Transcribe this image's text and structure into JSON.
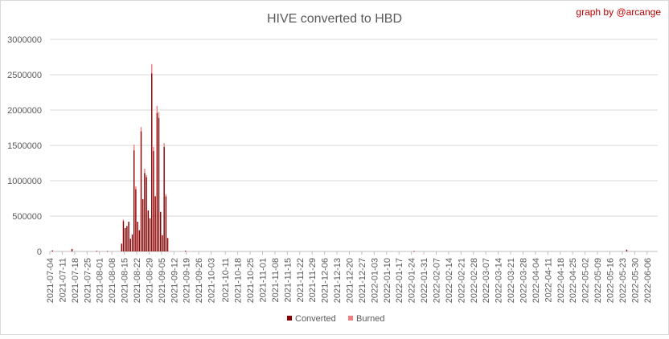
{
  "credit": "graph by @arcange",
  "colors": {
    "converted": "#8b0000",
    "burned": "#f08080",
    "grid": "#d9d9d9",
    "axis_text": "#595959",
    "title": "#595959",
    "credit": "#c00000",
    "border": "#d9d9d9"
  },
  "chart_data": {
    "type": "bar",
    "title": "HIVE converted to HBD",
    "xlabel": "",
    "ylabel": "",
    "ylim": [
      0,
      3000000
    ],
    "yticks": [
      0,
      500000,
      1000000,
      1500000,
      2000000,
      2500000,
      3000000
    ],
    "ytick_labels": [
      "0",
      "500000",
      "1000000",
      "1500000",
      "2000000",
      "2500000",
      "3000000"
    ],
    "grid": true,
    "legend_position": "bottom",
    "x_start": "2021-07-04",
    "x_end": "2022-06-12",
    "xtick_labels": [
      "2021-07-04",
      "2021-07-11",
      "2021-07-18",
      "2021-07-25",
      "2021-08-01",
      "2021-08-08",
      "2021-08-15",
      "2021-08-22",
      "2021-08-29",
      "2021-09-05",
      "2021-09-12",
      "2021-09-19",
      "2021-09-26",
      "2021-10-03",
      "2021-10-11",
      "2021-10-18",
      "2021-10-25",
      "2021-11-01",
      "2021-11-08",
      "2021-11-15",
      "2021-11-22",
      "2021-11-29",
      "2021-12-06",
      "2021-12-13",
      "2021-12-20",
      "2021-12-27",
      "2022-01-03",
      "2022-01-10",
      "2022-01-17",
      "2022-01-24",
      "2022-01-31",
      "2022-02-07",
      "2022-02-14",
      "2022-02-21",
      "2022-02-28",
      "2022-03-07",
      "2022-03-14",
      "2022-03-21",
      "2022-03-28",
      "2022-04-04",
      "2022-04-11",
      "2022-04-18",
      "2022-04-25",
      "2022-05-02",
      "2022-05-09",
      "2022-05-16",
      "2022-05-23",
      "2022-05-30",
      "2022-06-06"
    ],
    "series": [
      {
        "name": "Converted",
        "color": "#8b0000",
        "points": [
          [
            "2021-07-05",
            15000
          ],
          [
            "2021-07-16",
            35000
          ],
          [
            "2021-07-30",
            8000
          ],
          [
            "2021-08-05",
            5000
          ],
          [
            "2021-08-13",
            110000
          ],
          [
            "2021-08-14",
            430000
          ],
          [
            "2021-08-15",
            330000
          ],
          [
            "2021-08-16",
            360000
          ],
          [
            "2021-08-17",
            420000
          ],
          [
            "2021-08-18",
            180000
          ],
          [
            "2021-08-19",
            240000
          ],
          [
            "2021-08-20",
            1430000
          ],
          [
            "2021-08-21",
            880000
          ],
          [
            "2021-08-22",
            420000
          ],
          [
            "2021-08-23",
            300000
          ],
          [
            "2021-08-24",
            1700000
          ],
          [
            "2021-08-25",
            740000
          ],
          [
            "2021-08-26",
            1110000
          ],
          [
            "2021-08-27",
            1050000
          ],
          [
            "2021-08-28",
            580000
          ],
          [
            "2021-08-29",
            470000
          ],
          [
            "2021-08-30",
            2520000
          ],
          [
            "2021-08-31",
            1420000
          ],
          [
            "2021-09-01",
            780000
          ],
          [
            "2021-09-02",
            1960000
          ],
          [
            "2021-09-03",
            1890000
          ],
          [
            "2021-09-04",
            560000
          ],
          [
            "2021-09-05",
            230000
          ],
          [
            "2021-09-06",
            1480000
          ],
          [
            "2021-09-07",
            780000
          ],
          [
            "2021-09-08",
            190000
          ],
          [
            "2021-09-18",
            10000
          ],
          [
            "2022-01-25",
            6000
          ],
          [
            "2022-05-25",
            25000
          ]
        ]
      },
      {
        "name": "Burned",
        "color": "#f08080",
        "points": [
          [
            "2021-08-14",
            20000
          ],
          [
            "2021-08-20",
            80000
          ],
          [
            "2021-08-21",
            40000
          ],
          [
            "2021-08-24",
            60000
          ],
          [
            "2021-08-26",
            60000
          ],
          [
            "2021-08-27",
            30000
          ],
          [
            "2021-08-30",
            130000
          ],
          [
            "2021-08-31",
            60000
          ],
          [
            "2021-09-02",
            100000
          ],
          [
            "2021-09-03",
            80000
          ],
          [
            "2021-09-06",
            50000
          ],
          [
            "2021-09-07",
            30000
          ]
        ]
      }
    ]
  }
}
